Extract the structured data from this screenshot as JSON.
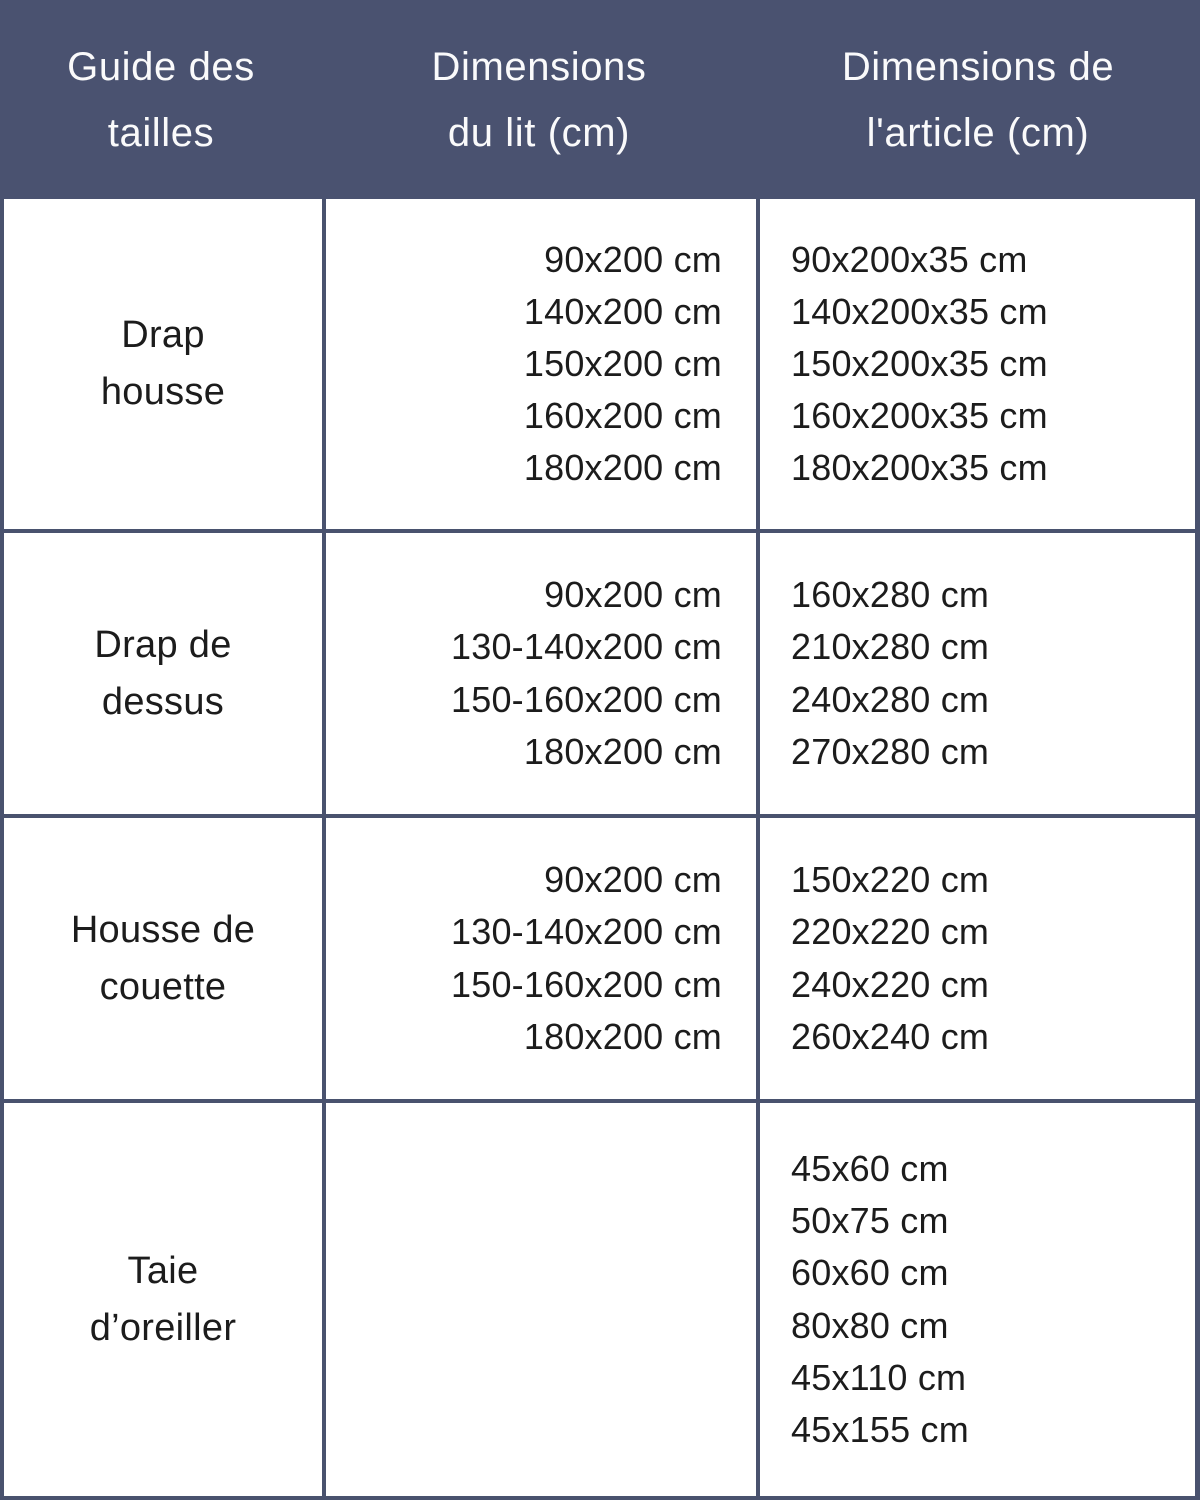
{
  "title": "Guide des tailles",
  "colors": {
    "header_bg": "#4A5270",
    "grid_line": "#49526E",
    "header_text": "#FAFAFB",
    "body_text": "#1C1C1C",
    "cell_bg": "#FFFFFF"
  },
  "header": {
    "cells": [
      "Guide des\ntailles",
      "Dimensions\ndu lit (cm)",
      "Dimensions de\nl'article (cm)"
    ]
  },
  "rows": [
    {
      "label": "Drap\nhousse",
      "bed_dimensions": [
        "90x200 cm",
        "140x200 cm",
        "150x200 cm",
        "160x200 cm",
        "180x200 cm"
      ],
      "article_dimensions": [
        "90x200x35 cm",
        "140x200x35 cm",
        "150x200x35 cm",
        "160x200x35 cm",
        "180x200x35 cm"
      ]
    },
    {
      "label": "Drap de\ndessus",
      "bed_dimensions": [
        "90x200 cm",
        "130-140x200 cm",
        "150-160x200 cm",
        "180x200 cm"
      ],
      "article_dimensions": [
        "160x280 cm",
        "210x280 cm",
        "240x280 cm",
        "270x280 cm"
      ]
    },
    {
      "label": "Housse de\ncouette",
      "bed_dimensions": [
        "90x200 cm",
        "130-140x200 cm",
        "150-160x200 cm",
        "180x200 cm"
      ],
      "article_dimensions": [
        "150x220 cm",
        "220x220 cm",
        "240x220 cm",
        "260x240 cm"
      ]
    },
    {
      "label": "Taie\nd’oreiller",
      "bed_dimensions": [],
      "article_dimensions": [
        "45x60 cm",
        "50x75 cm",
        "60x60 cm",
        "80x80 cm",
        "45x110 cm",
        "45x155 cm"
      ]
    }
  ],
  "chart_data": {
    "type": "table",
    "title": "Guide des tailles",
    "columns": [
      "Guide des tailles",
      "Dimensions du lit (cm)",
      "Dimensions de l'article (cm)"
    ],
    "rows": [
      {
        "produit": "Drap housse",
        "dimensions_du_lit_cm": [
          "90x200",
          "140x200",
          "150x200",
          "160x200",
          "180x200"
        ],
        "dimensions_de_l_article_cm": [
          "90x200x35",
          "140x200x35",
          "150x200x35",
          "160x200x35",
          "180x200x35"
        ]
      },
      {
        "produit": "Drap de dessus",
        "dimensions_du_lit_cm": [
          "90x200",
          "130-140x200",
          "150-160x200",
          "180x200"
        ],
        "dimensions_de_l_article_cm": [
          "160x280",
          "210x280",
          "240x280",
          "270x280"
        ]
      },
      {
        "produit": "Housse de couette",
        "dimensions_du_lit_cm": [
          "90x200",
          "130-140x200",
          "150-160x200",
          "180x200"
        ],
        "dimensions_de_l_article_cm": [
          "150x220",
          "220x220",
          "240x220",
          "260x240"
        ]
      },
      {
        "produit": "Taie d’oreiller",
        "dimensions_du_lit_cm": [],
        "dimensions_de_l_article_cm": [
          "45x60",
          "50x75",
          "60x60",
          "80x80",
          "45x110",
          "45x155"
        ]
      }
    ],
    "layout": {
      "header_position": "top",
      "col1_align": "center",
      "col2_align": "right",
      "col3_align": "left",
      "grid": "on"
    }
  }
}
